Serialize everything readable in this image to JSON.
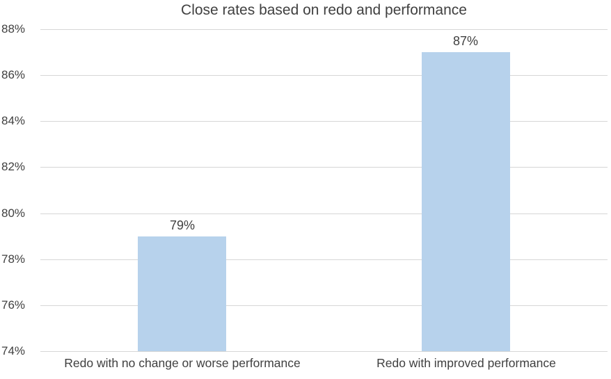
{
  "chart_data": {
    "type": "bar",
    "title": "Close rates based on redo and performance",
    "categories": [
      "Redo with no change or worse performance",
      "Redo with improved performance"
    ],
    "values": [
      79,
      87
    ],
    "data_labels": [
      "79%",
      "87%"
    ],
    "xlabel": "",
    "ylabel": "",
    "ylim": [
      74,
      88
    ],
    "ytick_step": 2,
    "ytick_labels": [
      "74%",
      "76%",
      "78%",
      "80%",
      "82%",
      "84%",
      "86%",
      "88%"
    ],
    "grid": "horizontal",
    "legend": "none"
  },
  "colors": {
    "bar_fill": "#b7d2ec",
    "gridline": "#d6d6d6",
    "text": "#404040",
    "background": "#ffffff"
  }
}
